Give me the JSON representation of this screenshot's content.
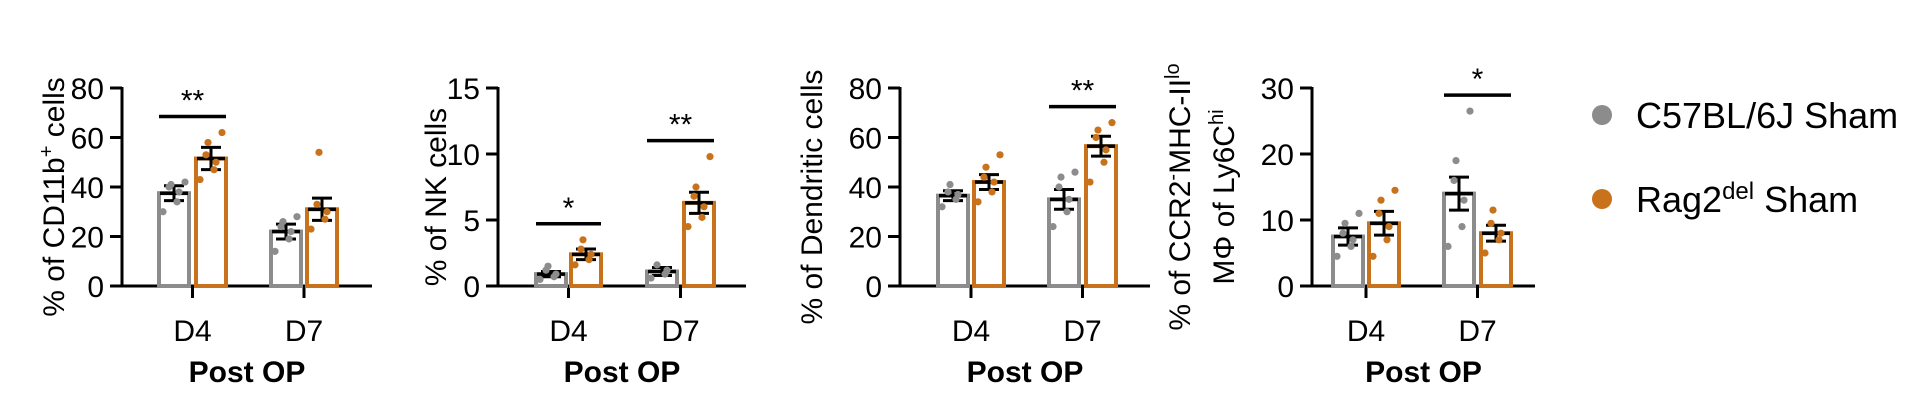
{
  "xlabel": "Post OP",
  "colors": {
    "control": "#8c8c8c",
    "treated": "#c8721c"
  },
  "legend": {
    "placement": "right",
    "entries": [
      {
        "main": "C57BL/6J Sham",
        "sup": "",
        "tail": ""
      },
      {
        "main": "Rag2",
        "sup": "del",
        "tail": " Sham"
      }
    ]
  },
  "chart_data": [
    {
      "type": "bar",
      "categories": [
        "D4",
        "D7"
      ],
      "ylabel_parts": [
        "% of CD11b",
        "+",
        " cells"
      ],
      "ylim": [
        0,
        80
      ],
      "yticks": [
        "0",
        "20",
        "40",
        "60",
        "80"
      ],
      "series": [
        {
          "group": "C57BL/6J Sham",
          "values": [
            37.5,
            22
          ],
          "sem": [
            3,
            3
          ],
          "points": [
            [
              30,
              34,
              38,
              40,
              41,
              42
            ],
            [
              14,
              19,
              22,
              24,
              26,
              28
            ]
          ]
        },
        {
          "group": "Rag2del Sham",
          "values": [
            51.5,
            31
          ],
          "sem": [
            4.5,
            4.5
          ],
          "points": [
            [
              43,
              47,
              50,
              53,
              58,
              62
            ],
            [
              23,
              27,
              30,
              33,
              54
            ]
          ]
        }
      ],
      "significance": [
        {
          "category": "D4",
          "label": "**"
        }
      ]
    },
    {
      "type": "bar",
      "categories": [
        "D4",
        "D7"
      ],
      "ylabel_parts": [
        "% of NK cells",
        "",
        ""
      ],
      "ylim": [
        0,
        15
      ],
      "yticks": [
        "0",
        "5",
        "10",
        "15"
      ],
      "series": [
        {
          "group": "C57BL/6J Sham",
          "values": [
            0.9,
            1.1
          ],
          "sem": [
            0.2,
            0.3
          ],
          "points": [
            [
              0.5,
              0.7,
              0.9,
              1.2,
              1.5
            ],
            [
              0.6,
              0.9,
              1.2,
              1.6
            ]
          ]
        },
        {
          "group": "Rag2del Sham",
          "values": [
            2.4,
            6.3
          ],
          "sem": [
            0.4,
            0.8
          ],
          "points": [
            [
              1.6,
              2.0,
              2.4,
              2.8,
              3.5
            ],
            [
              4.5,
              5.2,
              6.0,
              6.8,
              7.5,
              9.8
            ]
          ]
        }
      ],
      "significance": [
        {
          "category": "D4",
          "label": "*"
        },
        {
          "category": "D7",
          "label": "**"
        }
      ]
    },
    {
      "type": "bar",
      "categories": [
        "D4",
        "D7"
      ],
      "ylabel_parts": [
        "% of Dendritic cells",
        "",
        ""
      ],
      "ylim": [
        0,
        80
      ],
      "yticks": [
        "0",
        "20",
        "40",
        "60",
        "80"
      ],
      "series": [
        {
          "group": "C57BL/6J Sham",
          "values": [
            36.5,
            35
          ],
          "sem": [
            2,
            4
          ],
          "points": [
            [
              32,
              35,
              37,
              38,
              41
            ],
            [
              24,
              30,
              35,
              40,
              44,
              46
            ]
          ]
        },
        {
          "group": "Rag2del Sham",
          "values": [
            42,
            56.5
          ],
          "sem": [
            3,
            4
          ],
          "points": [
            [
              34,
              38,
              42,
              44,
              48,
              53
            ],
            [
              42,
              50,
              55,
              60,
              63,
              66
            ]
          ]
        }
      ],
      "significance": [
        {
          "category": "D7",
          "label": "**"
        }
      ]
    },
    {
      "type": "bar",
      "categories": [
        "D4",
        "D7"
      ],
      "ylabel_lines": [
        {
          "parts": [
            "% of CCR2",
            "-",
            "MHC-II",
            "lo"
          ]
        },
        {
          "parts": [
            "MΦ of Ly6C",
            "hi",
            "",
            ""
          ]
        }
      ],
      "ylim": [
        0,
        30
      ],
      "yticks": [
        "0",
        "10",
        "20",
        "30"
      ],
      "series": [
        {
          "group": "C57BL/6J Sham",
          "values": [
            7.5,
            14
          ],
          "sem": [
            1.3,
            2.5
          ],
          "points": [
            [
              4.5,
              6,
              7,
              8,
              9.5,
              11
            ],
            [
              6,
              9,
              13,
              16,
              19,
              26.5
            ]
          ]
        },
        {
          "group": "Rag2del Sham",
          "values": [
            9.5,
            8
          ],
          "sem": [
            1.8,
            1.2
          ],
          "points": [
            [
              4.5,
              7,
              9,
              11,
              13,
              14.5
            ],
            [
              5,
              7,
              8,
              9.5,
              11.5
            ]
          ]
        }
      ],
      "significance": [
        {
          "category": "D7",
          "label": "*"
        }
      ]
    }
  ]
}
